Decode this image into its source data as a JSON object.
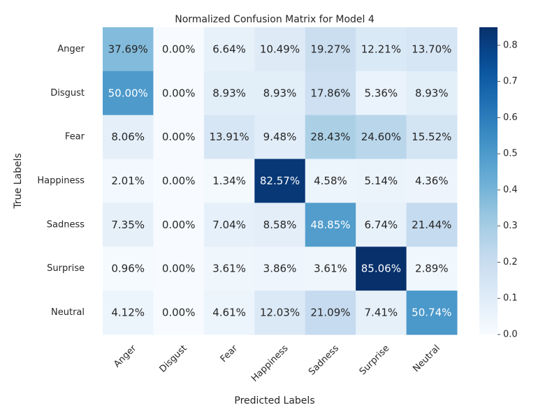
{
  "chart_data": {
    "type": "heatmap",
    "title": "Normalized Confusion Matrix for Model 4",
    "xlabel": "Predicted Labels",
    "ylabel": "True Labels",
    "x_categories": [
      "Anger",
      "Disgust",
      "Fear",
      "Happiness",
      "Sadness",
      "Surprise",
      "Neutral"
    ],
    "y_categories": [
      "Anger",
      "Disgust",
      "Fear",
      "Happiness",
      "Sadness",
      "Surprise",
      "Neutral"
    ],
    "values": [
      [
        0.3769,
        0.0,
        0.0664,
        0.1049,
        0.1927,
        0.1221,
        0.137
      ],
      [
        0.5,
        0.0,
        0.0893,
        0.0893,
        0.1786,
        0.0536,
        0.0893
      ],
      [
        0.0806,
        0.0,
        0.1391,
        0.0948,
        0.2843,
        0.246,
        0.1552
      ],
      [
        0.0201,
        0.0,
        0.0134,
        0.8257,
        0.0458,
        0.0514,
        0.0436
      ],
      [
        0.0735,
        0.0,
        0.0704,
        0.0858,
        0.4885,
        0.0674,
        0.2144
      ],
      [
        0.0096,
        0.0,
        0.0361,
        0.0386,
        0.0361,
        0.8506,
        0.0289
      ],
      [
        0.0412,
        0.0,
        0.0461,
        0.1203,
        0.2109,
        0.0741,
        0.5074
      ]
    ],
    "cell_labels": [
      [
        "37.69%",
        "0.00%",
        "6.64%",
        "10.49%",
        "19.27%",
        "12.21%",
        "13.70%"
      ],
      [
        "50.00%",
        "0.00%",
        "8.93%",
        "8.93%",
        "17.86%",
        "5.36%",
        "8.93%"
      ],
      [
        "8.06%",
        "0.00%",
        "13.91%",
        "9.48%",
        "28.43%",
        "24.60%",
        "15.52%"
      ],
      [
        "2.01%",
        "0.00%",
        "1.34%",
        "82.57%",
        "4.58%",
        "5.14%",
        "4.36%"
      ],
      [
        "7.35%",
        "0.00%",
        "7.04%",
        "8.58%",
        "48.85%",
        "6.74%",
        "21.44%"
      ],
      [
        "0.96%",
        "0.00%",
        "3.61%",
        "3.86%",
        "3.61%",
        "85.06%",
        "2.89%"
      ],
      [
        "4.12%",
        "0.00%",
        "4.61%",
        "12.03%",
        "21.09%",
        "7.41%",
        "50.74%"
      ]
    ],
    "colormap": "Blues",
    "vmin": 0.0,
    "vmax": 0.85,
    "colorbar_ticks": [
      "0.0",
      "0.1",
      "0.2",
      "0.3",
      "0.4",
      "0.5",
      "0.6",
      "0.7",
      "0.8"
    ],
    "x_tick_rotation_deg": 45,
    "grid": false
  }
}
